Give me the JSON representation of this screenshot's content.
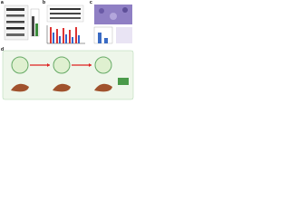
{
  "figure": {
    "panels": [
      {
        "label": "a"
      },
      {
        "label": "b"
      },
      {
        "label": "c"
      },
      {
        "label": "d"
      }
    ]
  }
}
